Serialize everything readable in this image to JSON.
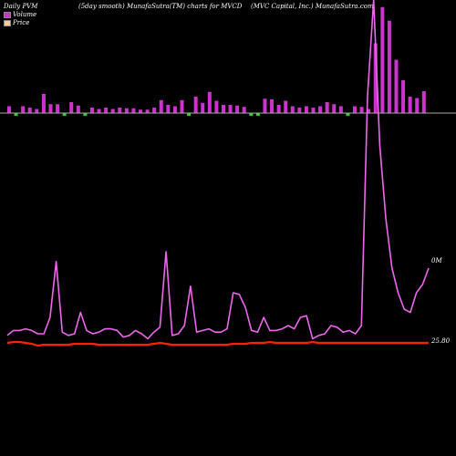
{
  "header": {
    "left": "Daily PVM",
    "middle": "(5day smooth) MunafaSutra(TM) charts for MVCD",
    "right": "(MVC Capital, Inc.) MunafaSutra.com"
  },
  "legend": {
    "volume_label": "Volume",
    "price_label": "Price",
    "volume_color": "#cc33cc",
    "price_color": "#ffcc99"
  },
  "colors": {
    "background": "#000000",
    "volume_line": "#ee66ee",
    "price_line": "#ff2200",
    "bar_up": "#cc33cc",
    "bar_down": "#33cc33",
    "axis": "#aaaaaa"
  },
  "chart_data": {
    "type": "line",
    "title": "Daily PVM (5day smooth) MunafaSutra(TM) charts for MVCD",
    "volume_axis_label": "0M",
    "price_axis_label": "25.80",
    "bars": [
      {
        "v": 10,
        "up": true
      },
      {
        "v": 8,
        "up": false
      },
      {
        "v": 10,
        "up": true
      },
      {
        "v": 8,
        "up": true
      },
      {
        "v": 6,
        "up": true
      },
      {
        "v": 28,
        "up": true
      },
      {
        "v": 13,
        "up": true
      },
      {
        "v": 13,
        "up": true
      },
      {
        "v": 11,
        "up": false
      },
      {
        "v": 16,
        "up": true
      },
      {
        "v": 11,
        "up": true
      },
      {
        "v": 12,
        "up": false
      },
      {
        "v": 8,
        "up": true
      },
      {
        "v": 6,
        "up": true
      },
      {
        "v": 8,
        "up": true
      },
      {
        "v": 6,
        "up": true
      },
      {
        "v": 8,
        "up": true
      },
      {
        "v": 7,
        "up": true
      },
      {
        "v": 7,
        "up": true
      },
      {
        "v": 5,
        "up": true
      },
      {
        "v": 5,
        "up": true
      },
      {
        "v": 8,
        "up": true
      },
      {
        "v": 19,
        "up": true
      },
      {
        "v": 12,
        "up": true
      },
      {
        "v": 10,
        "up": true
      },
      {
        "v": 19,
        "up": true
      },
      {
        "v": 36,
        "up": false
      },
      {
        "v": 24,
        "up": true
      },
      {
        "v": 15,
        "up": true
      },
      {
        "v": 31,
        "up": true
      },
      {
        "v": 18,
        "up": true
      },
      {
        "v": 12,
        "up": true
      },
      {
        "v": 12,
        "up": true
      },
      {
        "v": 11,
        "up": true
      },
      {
        "v": 9,
        "up": true
      },
      {
        "v": 8,
        "up": false
      },
      {
        "v": 11,
        "up": false
      },
      {
        "v": 21,
        "up": true
      },
      {
        "v": 20,
        "up": true
      },
      {
        "v": 12,
        "up": true
      },
      {
        "v": 18,
        "up": true
      },
      {
        "v": 10,
        "up": true
      },
      {
        "v": 8,
        "up": true
      },
      {
        "v": 10,
        "up": true
      },
      {
        "v": 8,
        "up": true
      },
      {
        "v": 10,
        "up": true
      },
      {
        "v": 16,
        "up": true
      },
      {
        "v": 13,
        "up": true
      },
      {
        "v": 10,
        "up": true
      },
      {
        "v": 10,
        "up": false
      },
      {
        "v": 10,
        "up": true
      },
      {
        "v": 9,
        "up": true
      },
      {
        "v": 6,
        "up": true
      },
      {
        "v": 102,
        "up": true
      },
      {
        "v": 155,
        "up": true
      },
      {
        "v": 135,
        "up": true
      },
      {
        "v": 78,
        "up": true
      },
      {
        "v": 48,
        "up": true
      },
      {
        "v": 24,
        "up": true
      },
      {
        "v": 22,
        "up": true
      },
      {
        "v": 32,
        "up": true
      }
    ],
    "volume_series": [
      8,
      14,
      14,
      16,
      14,
      10,
      10,
      30,
      98,
      12,
      8,
      10,
      36,
      14,
      10,
      12,
      16,
      16,
      14,
      6,
      8,
      14,
      10,
      4,
      12,
      18,
      110,
      8,
      10,
      20,
      68,
      12,
      14,
      16,
      12,
      12,
      16,
      60,
      58,
      42,
      14,
      12,
      30,
      14,
      14,
      16,
      20,
      16,
      30,
      32,
      4,
      8,
      10,
      20,
      18,
      12,
      14,
      10,
      20,
      300,
      500,
      240,
      150,
      90,
      60,
      40,
      36,
      60,
      70,
      90
    ],
    "price_series": [
      4,
      5,
      5,
      4,
      3,
      1,
      2,
      2,
      2,
      2,
      2,
      3,
      3,
      3,
      3,
      2,
      2,
      2,
      2,
      2,
      2,
      2,
      2,
      2,
      3,
      4,
      3,
      2,
      2,
      2,
      2,
      2,
      2,
      2,
      2,
      2,
      2,
      3,
      3,
      3,
      4,
      4,
      4,
      5,
      4,
      4,
      4,
      4,
      4,
      4,
      5,
      4,
      4,
      4,
      4,
      4,
      4,
      4,
      4,
      4,
      4,
      4,
      4,
      4,
      4,
      4,
      4,
      4,
      4,
      4
    ]
  }
}
